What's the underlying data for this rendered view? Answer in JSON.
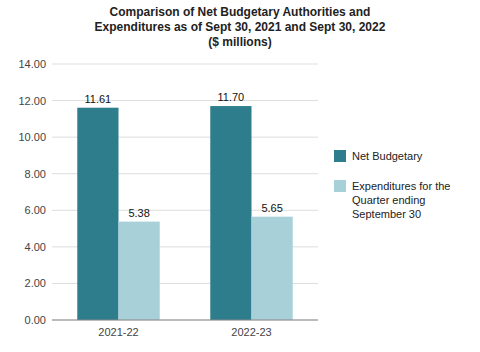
{
  "chart_data": {
    "type": "bar",
    "title": "Comparison of Net Budgetary Authorities and\nExpenditures as of Sept 30, 2021 and Sept 30, 2022\n($ millions)",
    "categories": [
      "2021-22",
      "2022-23"
    ],
    "series": [
      {
        "name": "Net Budgetary",
        "color": "#2E7D8C",
        "values": [
          11.61,
          11.7
        ],
        "value_labels": [
          "11.61",
          "11.70"
        ]
      },
      {
        "name": "Expenditures for the\nQuarter ending\nSeptember 30",
        "color": "#A8D0D8",
        "values": [
          5.38,
          5.65
        ],
        "value_labels": [
          "5.38",
          "5.65"
        ]
      }
    ],
    "ylim": [
      0,
      14.0
    ],
    "yticks": [
      {
        "value": 0.0,
        "label": "0.00"
      },
      {
        "value": 2.0,
        "label": "2.00"
      },
      {
        "value": 4.0,
        "label": "4.00"
      },
      {
        "value": 6.0,
        "label": "6.00"
      },
      {
        "value": 8.0,
        "label": "8.00"
      },
      {
        "value": 10.0,
        "label": "10.00"
      },
      {
        "value": 12.0,
        "label": "12.00"
      },
      {
        "value": 14.0,
        "label": "14.00"
      }
    ],
    "grid": true,
    "data_labels": true,
    "legend": "right"
  }
}
